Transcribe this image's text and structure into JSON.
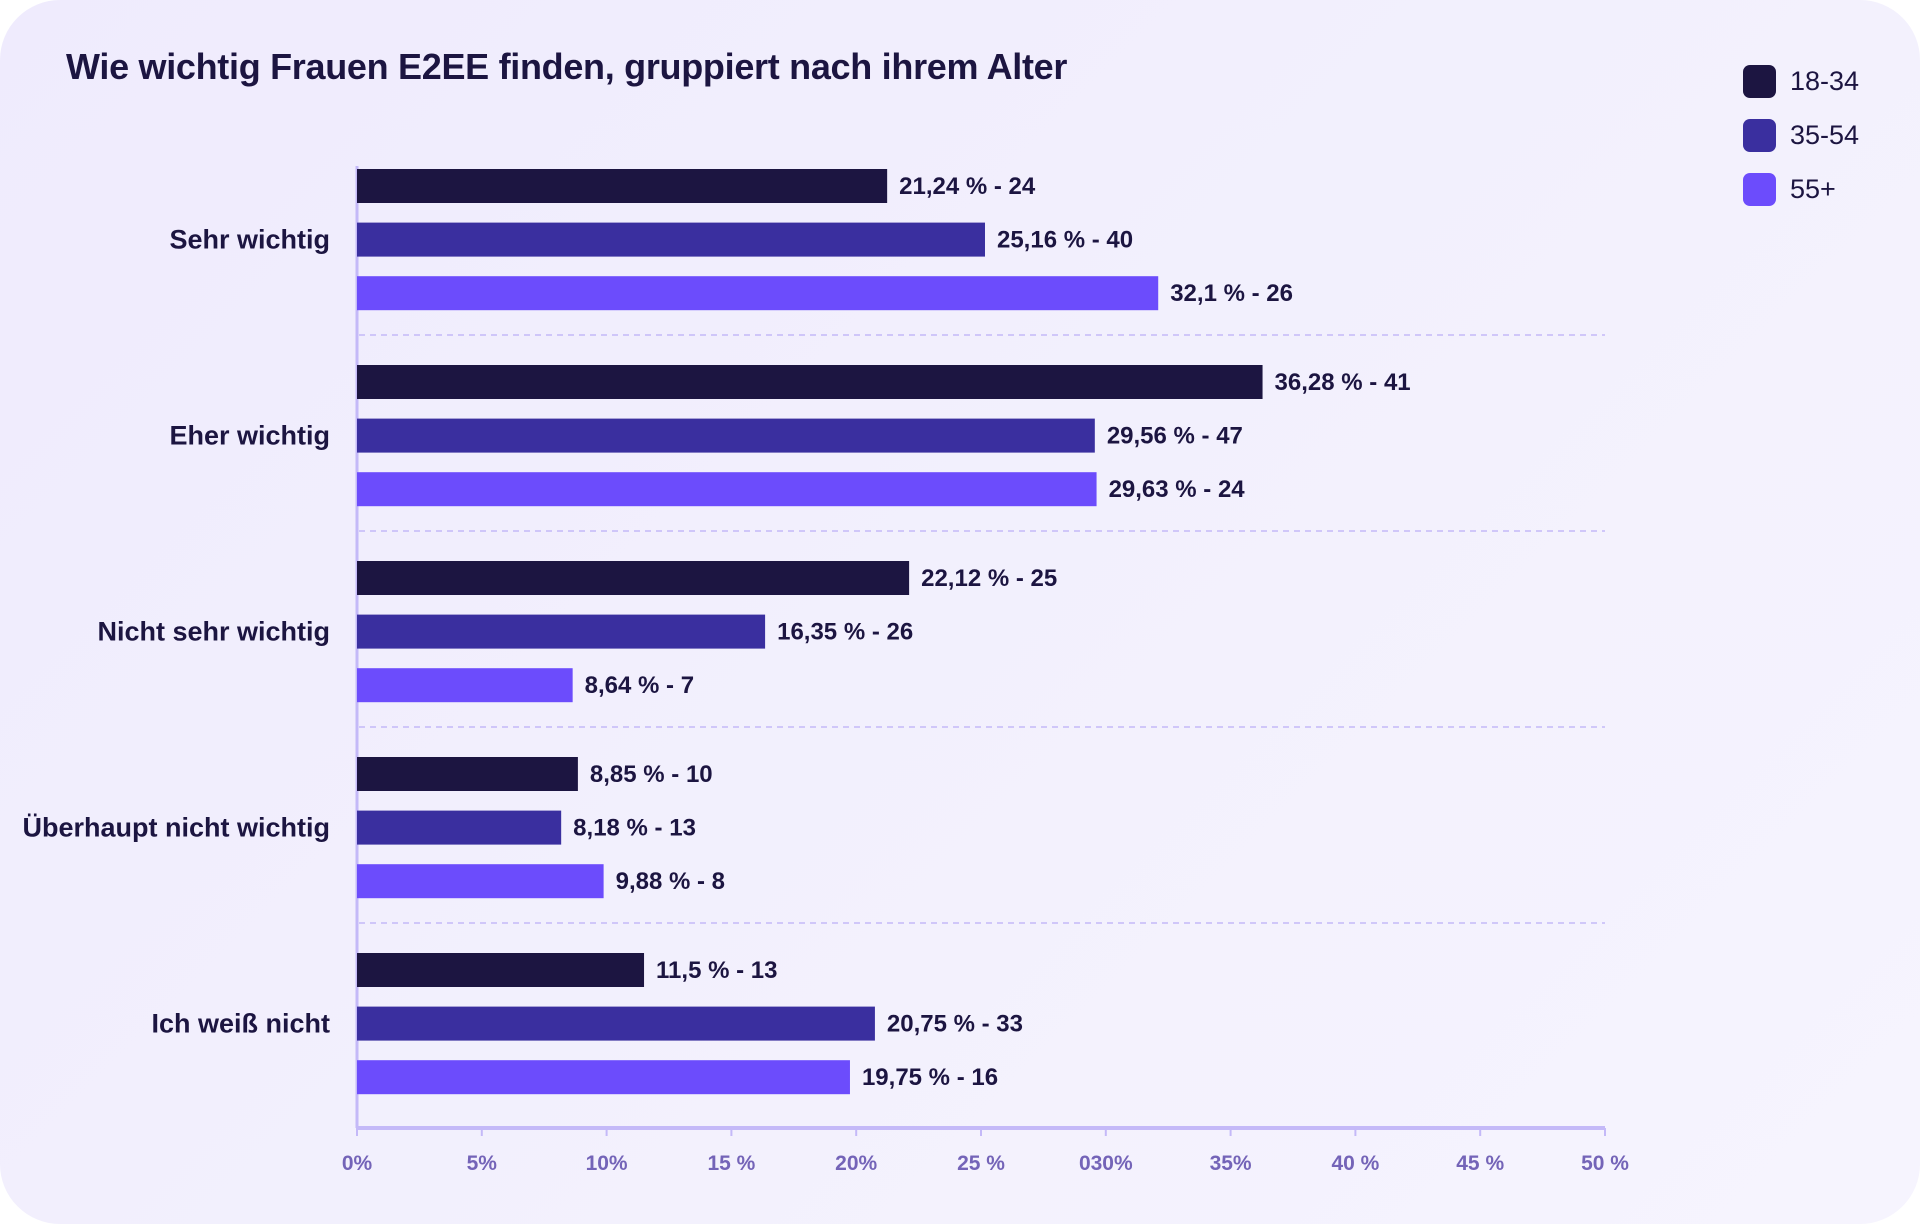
{
  "colors": {
    "s1": "#1c1541",
    "s2": "#3a2f9f",
    "s3": "#6c4cfc",
    "axis": "#c4b9f8",
    "grid": "#c4b9f8",
    "text": "#1c1541",
    "tick": "#7464b8"
  },
  "chart_data": {
    "type": "bar",
    "orientation": "horizontal",
    "title": "Wie wichtig Frauen E2EE finden, gruppiert nach ihrem Alter",
    "categories": [
      "Sehr wichtig",
      "Eher wichtig",
      "Nicht sehr wichtig",
      "Überhaupt nicht wichtig",
      "Ich weiß nicht"
    ],
    "series": [
      {
        "name": "18-34",
        "values": [
          21.24,
          36.28,
          22.12,
          8.85,
          11.5
        ],
        "counts": [
          24,
          41,
          25,
          10,
          13
        ],
        "labels": [
          "21,24 % - 24",
          "36,28 % - 41",
          "22,12 % - 25",
          "8,85 % - 10",
          "11,5 % - 13"
        ]
      },
      {
        "name": "35-54",
        "values": [
          25.16,
          29.56,
          16.35,
          8.18,
          20.75
        ],
        "counts": [
          40,
          47,
          26,
          13,
          33
        ],
        "labels": [
          "25,16 % - 40",
          "29,56 % - 47",
          "16,35 % - 26",
          "8,18 % - 13",
          "20,75 % - 33"
        ]
      },
      {
        "name": "55+",
        "values": [
          32.1,
          29.63,
          8.64,
          9.88,
          19.75
        ],
        "counts": [
          26,
          24,
          7,
          8,
          16
        ],
        "labels": [
          "32,1 % - 26",
          "29,63 % - 24",
          "8,64 % - 7",
          "9,88 % - 8",
          "19,75 % - 16"
        ]
      }
    ],
    "xlim": [
      0,
      50
    ],
    "xticks": [
      0,
      5,
      10,
      15,
      20,
      25,
      30,
      35,
      40,
      45,
      50
    ],
    "xtick_labels": [
      "0%",
      "5%",
      "10%",
      "15 %",
      "20%",
      "25 %",
      "030%",
      "35%",
      "40 %",
      "45 %",
      "50 %"
    ],
    "xlabel": "",
    "ylabel": "",
    "grid": "dashed separators between groups",
    "legend": "top-right"
  }
}
